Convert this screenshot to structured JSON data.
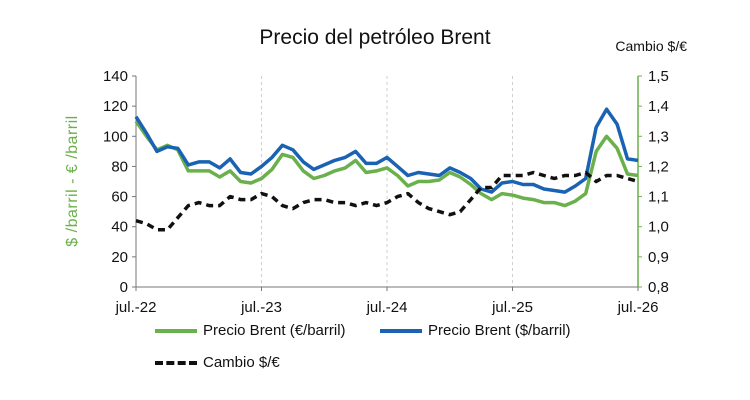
{
  "chart_data": {
    "type": "line",
    "title": "Precio del petróleo Brent",
    "ylabel": "$ /barril  -  € /barril",
    "y2label": "Cambio $/€",
    "ylim": [
      0,
      140
    ],
    "y_ticks": [
      "0",
      "20",
      "40",
      "60",
      "80",
      "100",
      "120",
      "140"
    ],
    "y2lim": [
      0.8,
      1.5
    ],
    "y2_ticks": [
      "0,8",
      "0,9",
      "1,0",
      "1,1",
      "1,2",
      "1,3",
      "1,4",
      "1,5"
    ],
    "x_tick_labels": [
      "jul.-22",
      "jul.-23",
      "jul.-24",
      "jul.-25",
      "jul.-26"
    ],
    "grid": "vertical dashed",
    "legend": "bottom",
    "colors": {
      "eur": "#6ab04c",
      "usd": "#1a62b3",
      "fx": "#111111",
      "y2axis": "#6ab04c"
    },
    "x": [
      "2022-07",
      "2022-08",
      "2022-09",
      "2022-10",
      "2022-11",
      "2022-12",
      "2023-01",
      "2023-02",
      "2023-03",
      "2023-04",
      "2023-05",
      "2023-06",
      "2023-07",
      "2023-08",
      "2023-09",
      "2023-10",
      "2023-11",
      "2023-12",
      "2024-01",
      "2024-02",
      "2024-03",
      "2024-04",
      "2024-05",
      "2024-06",
      "2024-07",
      "2024-08",
      "2024-09",
      "2024-10",
      "2024-11",
      "2024-12",
      "2025-01",
      "2025-02",
      "2025-03",
      "2025-04",
      "2025-05",
      "2025-06",
      "2025-07",
      "2025-08",
      "2025-09",
      "2025-10",
      "2025-11",
      "2025-12",
      "2026-01",
      "2026-02",
      "2026-03",
      "2026-04",
      "2026-05",
      "2026-06",
      "2026-07"
    ],
    "series": [
      {
        "name": "Precio Brent (€/barril)",
        "axis": "left",
        "values": [
          110,
          100,
          91,
          94,
          91,
          77,
          77,
          77,
          73,
          77,
          70,
          69,
          72,
          78,
          88,
          86,
          77,
          72,
          74,
          77,
          79,
          84,
          76,
          77,
          79,
          74,
          67,
          70,
          70,
          71,
          76,
          73,
          68,
          62,
          58,
          62,
          61,
          59,
          58,
          56,
          56,
          54,
          57,
          62,
          90,
          100,
          92,
          75,
          74
        ]
      },
      {
        "name": "Precio Brent ($/barril)",
        "axis": "left",
        "values": [
          113,
          102,
          90,
          93,
          92,
          81,
          83,
          83,
          79,
          85,
          76,
          75,
          80,
          86,
          94,
          91,
          83,
          78,
          81,
          84,
          86,
          90,
          82,
          82,
          86,
          80,
          74,
          76,
          75,
          74,
          79,
          76,
          72,
          65,
          63,
          69,
          70,
          68,
          68,
          65,
          64,
          63,
          67,
          72,
          106,
          118,
          108,
          85,
          84
        ]
      },
      {
        "name": "Cambio $/€",
        "axis": "right",
        "values": [
          1.02,
          1.01,
          0.99,
          0.99,
          1.03,
          1.07,
          1.08,
          1.07,
          1.07,
          1.1,
          1.09,
          1.09,
          1.11,
          1.1,
          1.07,
          1.06,
          1.08,
          1.09,
          1.09,
          1.08,
          1.08,
          1.07,
          1.08,
          1.07,
          1.08,
          1.1,
          1.11,
          1.08,
          1.06,
          1.05,
          1.04,
          1.05,
          1.09,
          1.13,
          1.13,
          1.17,
          1.17,
          1.17,
          1.18,
          1.17,
          1.16,
          1.17,
          1.17,
          1.18,
          1.15,
          1.17,
          1.17,
          1.16,
          1.15
        ]
      }
    ]
  }
}
